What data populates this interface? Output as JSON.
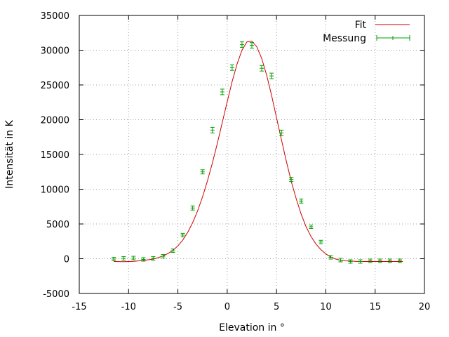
{
  "chart_data": {
    "type": "line",
    "xlabel": "Elevation in °",
    "ylabel": "Intensität in K",
    "xlim": [
      -15,
      20
    ],
    "ylim": [
      -5000,
      35000
    ],
    "x_ticks": [
      -15,
      -10,
      -5,
      0,
      5,
      10,
      15,
      20
    ],
    "y_ticks": [
      -5000,
      0,
      5000,
      10000,
      15000,
      20000,
      25000,
      30000,
      35000
    ],
    "grid": true,
    "legend_position": "top-right",
    "series": [
      {
        "name": "Fit",
        "kind": "line",
        "color": "#cc0000",
        "x": [
          -11.5,
          -10.5,
          -9.5,
          -8.5,
          -7.5,
          -7.0,
          -6.5,
          -6.0,
          -5.5,
          -5.0,
          -4.5,
          -4.0,
          -3.5,
          -3.0,
          -2.5,
          -2.0,
          -1.5,
          -1.0,
          -0.5,
          0.0,
          0.5,
          1.0,
          1.5,
          2.0,
          2.5,
          3.0,
          3.5,
          4.0,
          4.5,
          5.0,
          5.5,
          6.0,
          6.5,
          7.0,
          7.5,
          8.0,
          8.5,
          9.0,
          9.5,
          10.0,
          10.5,
          11.0,
          11.5,
          12.0,
          13.0,
          14.0,
          15.0,
          16.0,
          17.0,
          17.8
        ],
        "y": [
          -400,
          -420,
          -380,
          -250,
          -50,
          150,
          400,
          750,
          1200,
          1850,
          2700,
          3800,
          5200,
          6900,
          8900,
          11200,
          13800,
          16600,
          19600,
          22600,
          25500,
          28000,
          30000,
          31200,
          31300,
          30500,
          28800,
          26400,
          23500,
          20300,
          17100,
          14000,
          11100,
          8600,
          6400,
          4600,
          3200,
          2100,
          1300,
          700,
          250,
          -50,
          -220,
          -300,
          -380,
          -400,
          -400,
          -400,
          -400,
          -400
        ]
      },
      {
        "name": "Messung",
        "kind": "errorbars",
        "color": "#00a000",
        "x": [
          -11.5,
          -10.5,
          -9.5,
          -8.5,
          -7.5,
          -6.5,
          -5.5,
          -4.5,
          -3.5,
          -2.5,
          -1.5,
          -0.5,
          0.5,
          1.5,
          2.5,
          3.5,
          4.5,
          5.5,
          6.5,
          7.5,
          8.5,
          9.5,
          10.5,
          11.5,
          12.5,
          13.5,
          14.5,
          15.5,
          16.5,
          17.5
        ],
        "y": [
          -50,
          50,
          100,
          -100,
          50,
          350,
          1150,
          3400,
          7300,
          12500,
          18500,
          24000,
          27500,
          30800,
          30700,
          27400,
          26300,
          18100,
          11400,
          8300,
          4600,
          2400,
          200,
          -200,
          -400,
          -400,
          -300,
          -300,
          -300,
          -300
        ],
        "err": [
          250,
          250,
          250,
          250,
          250,
          250,
          250,
          250,
          300,
          300,
          400,
          400,
          400,
          400,
          400,
          400,
          400,
          400,
          300,
          300,
          250,
          250,
          250,
          250,
          250,
          250,
          250,
          250,
          250,
          250
        ]
      }
    ]
  }
}
